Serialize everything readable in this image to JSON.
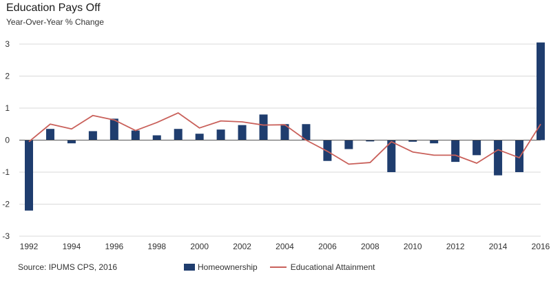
{
  "header": {
    "title": "Education Pays Off",
    "subtitle": "Year-Over-Year % Change"
  },
  "footer": {
    "source": "Source: IPUMS CPS, 2016"
  },
  "colors": {
    "bar": "#1f3d6e",
    "line": "#c9605a",
    "grid": "#d9d9d9",
    "axis": "#555555"
  },
  "chart_data": {
    "type": "bar",
    "title": "Education Pays Off",
    "subtitle": "Year-Over-Year % Change",
    "xlabel": "",
    "ylabel": "",
    "ylim": [
      -3,
      3
    ],
    "yticks": [
      -3,
      -2,
      -1,
      0,
      1,
      2,
      3
    ],
    "xtick_labels": [
      "1992",
      "1994",
      "1996",
      "1998",
      "2000",
      "2002",
      "2004",
      "2006",
      "2008",
      "2010",
      "2012",
      "2014",
      "2016"
    ],
    "grid": true,
    "legend_position": "bottom",
    "x": [
      1992,
      1993,
      1994,
      1995,
      1996,
      1997,
      1998,
      1999,
      2000,
      2001,
      2002,
      2003,
      2004,
      2005,
      2006,
      2007,
      2008,
      2009,
      2010,
      2011,
      2012,
      2013,
      2014,
      2015,
      2016
    ],
    "series": [
      {
        "name": "Homeownership",
        "type": "bar",
        "values": [
          -2.2,
          0.35,
          -0.1,
          0.28,
          0.67,
          0.3,
          0.15,
          0.35,
          0.2,
          0.33,
          0.47,
          0.8,
          0.5,
          0.5,
          -0.65,
          -0.28,
          -0.04,
          -1.0,
          -0.05,
          -0.1,
          -0.68,
          -0.47,
          -1.1,
          -1.0,
          3.05
        ]
      },
      {
        "name": "Educational Attainment",
        "type": "line",
        "values": [
          -0.05,
          0.5,
          0.35,
          0.77,
          0.63,
          0.3,
          0.55,
          0.85,
          0.38,
          0.6,
          0.57,
          0.47,
          0.48,
          0.0,
          -0.35,
          -0.75,
          -0.7,
          -0.05,
          -0.37,
          -0.47,
          -0.47,
          -0.72,
          -0.3,
          -0.55,
          0.5
        ]
      }
    ]
  }
}
